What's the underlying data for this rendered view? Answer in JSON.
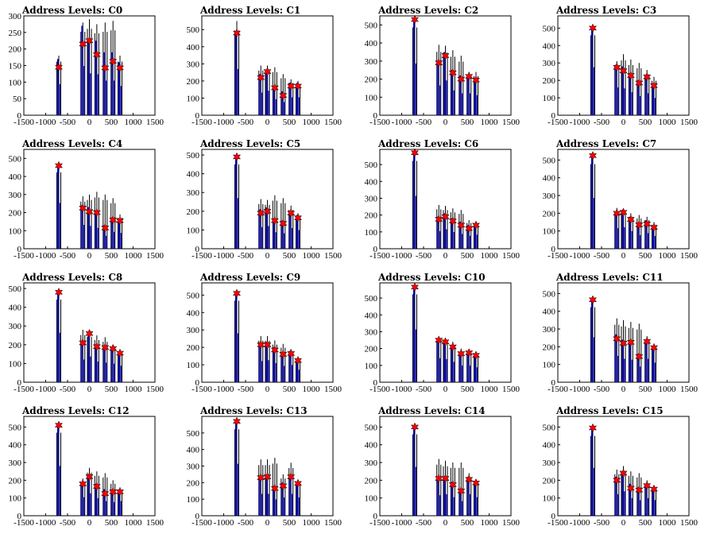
{
  "figure": {
    "xlim": [
      -1500,
      1500
    ],
    "xticks": [
      -1500,
      -1000,
      -500,
      0,
      500,
      1000,
      1500
    ],
    "colors": {
      "black_series": "#000000",
      "blue_series": "#0000ee",
      "marker": "#ff0000",
      "marker_edge": "#000000"
    }
  },
  "chart_data": [
    {
      "type": "bar",
      "title": "Address Levels: C0",
      "ylim": [
        0,
        300
      ],
      "yticks": [
        0,
        50,
        100,
        150,
        200,
        250,
        300
      ],
      "spikes": [
        [
          -700,
          180,
          170
        ],
        [
          -150,
          280,
          270
        ],
        [
          0,
          290,
          230
        ],
        [
          170,
          275,
          225
        ],
        [
          360,
          280,
          190
        ],
        [
          540,
          285,
          190
        ],
        [
          700,
          180,
          160
        ]
      ],
      "markers": [
        [
          -700,
          145
        ],
        [
          -150,
          215
        ],
        [
          0,
          225
        ],
        [
          170,
          183
        ],
        [
          360,
          143
        ],
        [
          540,
          163
        ],
        [
          700,
          143
        ]
      ]
    },
    {
      "type": "bar",
      "title": "Address Levels: C1",
      "ylim": [
        0,
        580
      ],
      "yticks": [
        0,
        100,
        200,
        300,
        400,
        500
      ],
      "spikes": [
        [
          -700,
          550,
          490
        ],
        [
          -150,
          290,
          240
        ],
        [
          0,
          290,
          260
        ],
        [
          170,
          280,
          170
        ],
        [
          360,
          240,
          140
        ],
        [
          540,
          210,
          190
        ],
        [
          700,
          200,
          190
        ]
      ],
      "markers": [
        [
          -700,
          480
        ],
        [
          -150,
          220
        ],
        [
          0,
          255
        ],
        [
          170,
          160
        ],
        [
          360,
          115
        ],
        [
          540,
          170
        ],
        [
          700,
          170
        ]
      ]
    },
    {
      "type": "bar",
      "title": "Address Levels: C2",
      "ylim": [
        0,
        550
      ],
      "yticks": [
        0,
        100,
        200,
        300,
        400,
        500
      ],
      "spikes": [
        [
          -700,
          540,
          520
        ],
        [
          -150,
          390,
          300
        ],
        [
          0,
          385,
          350
        ],
        [
          170,
          360,
          250
        ],
        [
          360,
          330,
          220
        ],
        [
          540,
          240,
          220
        ],
        [
          700,
          240,
          200
        ]
      ],
      "markers": [
        [
          -700,
          530
        ],
        [
          -150,
          290
        ],
        [
          0,
          330
        ],
        [
          170,
          235
        ],
        [
          360,
          200
        ],
        [
          540,
          215
        ],
        [
          700,
          195
        ]
      ]
    },
    {
      "type": "bar",
      "title": "Address Levels: C3",
      "ylim": [
        0,
        570
      ],
      "yticks": [
        0,
        100,
        200,
        300,
        400,
        500
      ],
      "spikes": [
        [
          -700,
          510,
          500
        ],
        [
          -150,
          310,
          290
        ],
        [
          0,
          350,
          280
        ],
        [
          170,
          320,
          240
        ],
        [
          360,
          300,
          200
        ],
        [
          540,
          260,
          230
        ],
        [
          700,
          220,
          180
        ]
      ],
      "markers": [
        [
          -700,
          500
        ],
        [
          -150,
          275
        ],
        [
          0,
          255
        ],
        [
          170,
          228
        ],
        [
          360,
          185
        ],
        [
          540,
          220
        ],
        [
          700,
          170
        ]
      ]
    },
    {
      "type": "bar",
      "title": "Address Levels: C4",
      "ylim": [
        0,
        550
      ],
      "yticks": [
        0,
        100,
        200,
        300,
        400,
        500
      ],
      "spikes": [
        [
          -700,
          470,
          460
        ],
        [
          -150,
          290,
          240
        ],
        [
          0,
          300,
          230
        ],
        [
          170,
          315,
          210
        ],
        [
          360,
          300,
          130
        ],
        [
          540,
          280,
          170
        ],
        [
          700,
          190,
          160
        ]
      ],
      "markers": [
        [
          -700,
          460
        ],
        [
          -150,
          225
        ],
        [
          0,
          205
        ],
        [
          170,
          200
        ],
        [
          360,
          115
        ],
        [
          540,
          160
        ],
        [
          700,
          155
        ]
      ]
    },
    {
      "type": "bar",
      "title": "Address Levels: C5",
      "ylim": [
        0,
        530
      ],
      "yticks": [
        0,
        100,
        200,
        300,
        400,
        500
      ],
      "spikes": [
        [
          -700,
          500,
          490
        ],
        [
          -150,
          265,
          210
        ],
        [
          0,
          260,
          220
        ],
        [
          170,
          285,
          160
        ],
        [
          360,
          270,
          150
        ],
        [
          540,
          230,
          200
        ],
        [
          700,
          190,
          180
        ]
      ],
      "markers": [
        [
          -700,
          490
        ],
        [
          -150,
          190
        ],
        [
          0,
          200
        ],
        [
          170,
          150
        ],
        [
          360,
          135
        ],
        [
          540,
          190
        ],
        [
          700,
          165
        ]
      ]
    },
    {
      "type": "bar",
      "title": "Address Levels: C6",
      "ylim": [
        0,
        590
      ],
      "yticks": [
        0,
        100,
        200,
        300,
        400,
        500
      ],
      "spikes": [
        [
          -700,
          580,
          570
        ],
        [
          -150,
          260,
          190
        ],
        [
          0,
          255,
          210
        ],
        [
          170,
          240,
          180
        ],
        [
          360,
          230,
          160
        ],
        [
          540,
          170,
          140
        ],
        [
          700,
          160,
          150
        ]
      ],
      "markers": [
        [
          -700,
          570
        ],
        [
          -150,
          175
        ],
        [
          0,
          190
        ],
        [
          170,
          165
        ],
        [
          360,
          140
        ],
        [
          540,
          120
        ],
        [
          700,
          140
        ]
      ]
    },
    {
      "type": "bar",
      "title": "Address Levels: C7",
      "ylim": [
        0,
        560
      ],
      "yticks": [
        0,
        100,
        200,
        300,
        400,
        500
      ],
      "spikes": [
        [
          -700,
          530,
          520
        ],
        [
          -150,
          230,
          210
        ],
        [
          0,
          225,
          220
        ],
        [
          170,
          200,
          180
        ],
        [
          360,
          190,
          140
        ],
        [
          540,
          180,
          160
        ],
        [
          700,
          150,
          130
        ]
      ],
      "markers": [
        [
          -700,
          525
        ],
        [
          -150,
          200
        ],
        [
          0,
          205
        ],
        [
          170,
          165
        ],
        [
          360,
          135
        ],
        [
          540,
          140
        ],
        [
          700,
          120
        ]
      ]
    },
    {
      "type": "bar",
      "title": "Address Levels: C8",
      "ylim": [
        0,
        530
      ],
      "yticks": [
        0,
        100,
        200,
        300,
        400,
        500
      ],
      "spikes": [
        [
          -700,
          490,
          480
        ],
        [
          -150,
          280,
          220
        ],
        [
          0,
          270,
          250
        ],
        [
          170,
          250,
          200
        ],
        [
          360,
          240,
          190
        ],
        [
          540,
          200,
          180
        ],
        [
          700,
          170,
          160
        ]
      ],
      "markers": [
        [
          -700,
          480
        ],
        [
          -150,
          210
        ],
        [
          0,
          260
        ],
        [
          170,
          190
        ],
        [
          360,
          185
        ],
        [
          540,
          180
        ],
        [
          700,
          155
        ]
      ]
    },
    {
      "type": "bar",
      "title": "Address Levels: C9",
      "ylim": [
        0,
        570
      ],
      "yticks": [
        0,
        100,
        200,
        300,
        400,
        500
      ],
      "spikes": [
        [
          -700,
          520,
          510
        ],
        [
          -150,
          265,
          220
        ],
        [
          0,
          265,
          230
        ],
        [
          170,
          240,
          200
        ],
        [
          360,
          220,
          170
        ],
        [
          540,
          190,
          180
        ],
        [
          700,
          140,
          130
        ]
      ],
      "markers": [
        [
          -700,
          510
        ],
        [
          -150,
          215
        ],
        [
          0,
          215
        ],
        [
          170,
          185
        ],
        [
          360,
          160
        ],
        [
          540,
          165
        ],
        [
          700,
          125
        ]
      ]
    },
    {
      "type": "bar",
      "title": "Address Levels: C10",
      "ylim": [
        0,
        590
      ],
      "yticks": [
        0,
        100,
        200,
        300,
        400,
        500
      ],
      "spikes": [
        [
          -700,
          580,
          570
        ],
        [
          -150,
          270,
          260
        ],
        [
          0,
          260,
          250
        ],
        [
          170,
          240,
          220
        ],
        [
          360,
          200,
          180
        ],
        [
          540,
          190,
          180
        ],
        [
          700,
          170,
          160
        ]
      ],
      "markers": [
        [
          -700,
          565
        ],
        [
          -150,
          250
        ],
        [
          0,
          240
        ],
        [
          170,
          210
        ],
        [
          360,
          170
        ],
        [
          540,
          175
        ],
        [
          700,
          160
        ]
      ]
    },
    {
      "type": "bar",
      "title": "Address Levels: C11",
      "ylim": [
        0,
        560
      ],
      "yticks": [
        0,
        100,
        200,
        300,
        400,
        500
      ],
      "spikes": [
        [
          -700,
          470,
          460
        ],
        [
          -150,
          360,
          270
        ],
        [
          0,
          350,
          240
        ],
        [
          170,
          340,
          230
        ],
        [
          360,
          330,
          160
        ],
        [
          540,
          260,
          240
        ],
        [
          700,
          210,
          200
        ]
      ],
      "markers": [
        [
          -700,
          465
        ],
        [
          -150,
          245
        ],
        [
          0,
          220
        ],
        [
          170,
          225
        ],
        [
          360,
          145
        ],
        [
          540,
          230
        ],
        [
          700,
          195
        ]
      ]
    },
    {
      "type": "bar",
      "title": "Address Levels: C12",
      "ylim": [
        0,
        560
      ],
      "yticks": [
        0,
        100,
        200,
        300,
        400,
        500
      ],
      "spikes": [
        [
          -700,
          520,
          510
        ],
        [
          -150,
          210,
          190
        ],
        [
          0,
          270,
          230
        ],
        [
          170,
          250,
          180
        ],
        [
          360,
          240,
          150
        ],
        [
          540,
          200,
          140
        ],
        [
          700,
          160,
          150
        ]
      ],
      "markers": [
        [
          -700,
          510
        ],
        [
          -150,
          180
        ],
        [
          0,
          220
        ],
        [
          170,
          165
        ],
        [
          360,
          125
        ],
        [
          540,
          135
        ],
        [
          700,
          135
        ]
      ]
    },
    {
      "type": "bar",
      "title": "Address Levels: C13",
      "ylim": [
        0,
        600
      ],
      "yticks": [
        0,
        100,
        200,
        300,
        400,
        500
      ],
      "spikes": [
        [
          -700,
          580,
          570
        ],
        [
          -150,
          340,
          240
        ],
        [
          0,
          340,
          240
        ],
        [
          170,
          350,
          180
        ],
        [
          360,
          250,
          200
        ],
        [
          540,
          320,
          240
        ],
        [
          700,
          210,
          200
        ]
      ],
      "markers": [
        [
          -700,
          570
        ],
        [
          -150,
          230
        ],
        [
          0,
          235
        ],
        [
          170,
          165
        ],
        [
          360,
          180
        ],
        [
          540,
          235
        ],
        [
          700,
          195
        ]
      ]
    },
    {
      "type": "bar",
      "title": "Address Levels: C14",
      "ylim": [
        0,
        560
      ],
      "yticks": [
        0,
        100,
        200,
        300,
        400,
        500
      ],
      "spikes": [
        [
          -700,
          510,
          500
        ],
        [
          -150,
          320,
          210
        ],
        [
          0,
          310,
          220
        ],
        [
          170,
          300,
          190
        ],
        [
          360,
          300,
          150
        ],
        [
          540,
          240,
          220
        ],
        [
          700,
          200,
          190
        ]
      ],
      "markers": [
        [
          -700,
          500
        ],
        [
          -150,
          210
        ],
        [
          0,
          210
        ],
        [
          170,
          175
        ],
        [
          360,
          140
        ],
        [
          540,
          205
        ],
        [
          700,
          185
        ]
      ]
    },
    {
      "type": "bar",
      "title": "Address Levels: C15",
      "ylim": [
        0,
        560
      ],
      "yticks": [
        0,
        100,
        200,
        300,
        400,
        500
      ],
      "spikes": [
        [
          -700,
          500,
          490
        ],
        [
          -150,
          260,
          220
        ],
        [
          0,
          280,
          250
        ],
        [
          170,
          250,
          180
        ],
        [
          360,
          240,
          160
        ],
        [
          540,
          200,
          180
        ],
        [
          700,
          170,
          160
        ]
      ],
      "markers": [
        [
          -700,
          495
        ],
        [
          -150,
          200
        ],
        [
          0,
          240
        ],
        [
          170,
          155
        ],
        [
          360,
          145
        ],
        [
          540,
          170
        ],
        [
          700,
          150
        ]
      ]
    }
  ]
}
